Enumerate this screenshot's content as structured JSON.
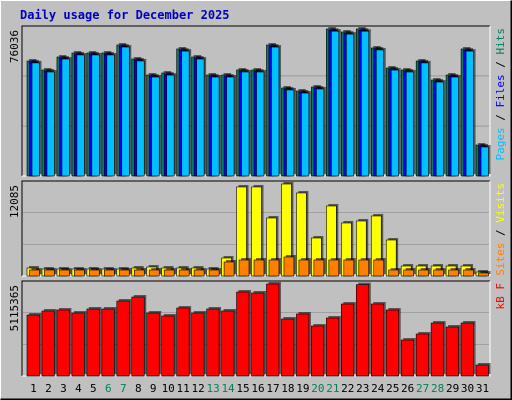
{
  "chart_data": [
    {
      "type": "bar",
      "title": "Daily usage for December 2025",
      "ylim": [
        0,
        76036
      ],
      "legend_separator": " / ",
      "series": [
        {
          "name": "Hits",
          "color": "#00805c",
          "values": [
            59484,
            54829,
            61553,
            63622,
            63622,
            63622,
            67760,
            60518,
            52242,
            53277,
            65691,
            61553,
            52242,
            52242,
            54829,
            54829,
            67760,
            45518,
            43966,
            46035,
            76036,
            74484,
            76036,
            66208,
            55863,
            54829,
            59484,
            49656,
            52242,
            65691,
            16035
          ]
        },
        {
          "name": "Files",
          "color": "#0000ff",
          "values": [
            59000,
            54300,
            61000,
            63100,
            63100,
            63100,
            67200,
            60000,
            51700,
            52700,
            65100,
            61000,
            51700,
            51700,
            54300,
            54300,
            67200,
            45000,
            43400,
            45500,
            75400,
            73900,
            75400,
            65700,
            55300,
            54300,
            59000,
            49100,
            51700,
            65100,
            15500
          ]
        },
        {
          "name": "Pages",
          "color": "#00c0ff",
          "values": [
            58500,
            53800,
            60500,
            62600,
            62600,
            62600,
            66700,
            59500,
            51200,
            52200,
            64600,
            60500,
            51200,
            51200,
            53800,
            53800,
            66700,
            44500,
            42900,
            45000,
            74900,
            73400,
            74900,
            65200,
            54800,
            53800,
            58500,
            48600,
            51200,
            64600,
            15000
          ]
        }
      ]
    },
    {
      "type": "bar",
      "ylim": [
        0,
        12085
      ],
      "legend_separator": " / ",
      "series": [
        {
          "name": "Visits",
          "color": "#ffff00",
          "values": [
            1051,
            920,
            920,
            920,
            920,
            920,
            920,
            1051,
            1183,
            1051,
            1051,
            1051,
            920,
            2365,
            11695,
            11695,
            7621,
            12085,
            10906,
            4993,
            9198,
            6964,
            7227,
            7884,
            4730,
            1314,
            1314,
            1314,
            1314,
            1314,
            526
          ]
        },
        {
          "name": "Sites",
          "color": "#ff8000",
          "values": [
            788,
            788,
            788,
            788,
            788,
            788,
            788,
            788,
            788,
            788,
            788,
            788,
            788,
            1840,
            2102,
            2102,
            2102,
            2497,
            2102,
            2102,
            2102,
            2102,
            2102,
            2102,
            788,
            788,
            788,
            788,
            788,
            788,
            394
          ]
        }
      ]
    },
    {
      "type": "bar",
      "ylim": [
        0,
        5115365
      ],
      "categories": [
        "1",
        "2",
        "3",
        "4",
        "5",
        "6",
        "7",
        "8",
        "9",
        "10",
        "11",
        "12",
        "13",
        "14",
        "15",
        "16",
        "17",
        "18",
        "19",
        "20",
        "21",
        "22",
        "23",
        "24",
        "25",
        "26",
        "27",
        "28",
        "29",
        "30",
        "31"
      ],
      "category_colors": [
        "#000000",
        "#000000",
        "#000000",
        "#000000",
        "#000000",
        "#00805c",
        "#00805c",
        "#000000",
        "#000000",
        "#000000",
        "#000000",
        "#000000",
        "#00805c",
        "#00805c",
        "#000000",
        "#000000",
        "#000000",
        "#000000",
        "#000000",
        "#00805c",
        "#00805c",
        "#000000",
        "#000000",
        "#000000",
        "#000000",
        "#000000",
        "#00805c",
        "#00805c",
        "#000000",
        "#000000",
        "#000000"
      ],
      "series": [
        {
          "name": "kB F",
          "color": "#ff0000",
          "values": [
            3391722,
            3614130,
            3669732,
            3502926,
            3725334,
            3725334,
            4170150,
            4392558,
            3502926,
            3336120,
            3780936,
            3502926,
            3725334,
            3614130,
            4670568,
            4614966,
            5115365,
            3169314,
            3447324,
            2780100,
            3224916,
            4003344,
            5080000,
            4003344,
            3669732,
            2001672,
            2335284,
            2946906,
            2724498,
            2946906,
            611622
          ]
        }
      ]
    }
  ]
}
